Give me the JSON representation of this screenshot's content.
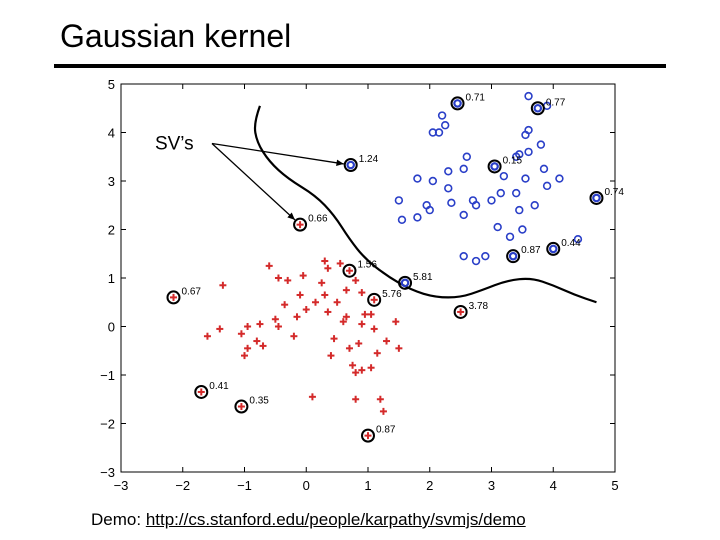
{
  "slide": {
    "title": "Gaussian kernel",
    "demo_prefix": "Demo:",
    "demo_link": "http://cs.stanford.edu/people/karpathy/svmjs/demo"
  },
  "colors": {
    "negative": "#d42a2a",
    "positive": "#2a3fc8",
    "boundary": "#000000",
    "ring": "#000000"
  },
  "chart_data": {
    "type": "scatter",
    "title": "",
    "xlabel": "",
    "ylabel": "",
    "xlim": [
      -3,
      5
    ],
    "ylim": [
      -3,
      5
    ],
    "xticks": [
      -3,
      -2,
      -1,
      0,
      1,
      2,
      3,
      4,
      5
    ],
    "yticks": [
      -3,
      -2,
      -1,
      0,
      1,
      2,
      3,
      4,
      5
    ],
    "xtick_labels": [
      "−3",
      "−2",
      "−1",
      "0",
      "1",
      "2",
      "3",
      "4",
      "5"
    ],
    "ytick_labels": [
      "−3",
      "−2",
      "−1",
      "0",
      "1",
      "2",
      "3",
      "4",
      "5"
    ],
    "grid": false,
    "annotation": {
      "text": "SV’s",
      "x": -2.45,
      "y": 3.65,
      "arrows_to": [
        [
          0.72,
          3.33
        ],
        [
          -0.1,
          2.1
        ]
      ]
    },
    "series": [
      {
        "marker": "plus",
        "color": "#d42a2a",
        "points": [
          [
            0.3,
            1.35
          ],
          [
            0.35,
            1.2
          ],
          [
            0.55,
            1.3
          ],
          [
            -0.6,
            1.25
          ],
          [
            -0.45,
            1.0
          ],
          [
            -0.3,
            0.95
          ],
          [
            -0.05,
            1.05
          ],
          [
            0.25,
            0.9
          ],
          [
            0.65,
            0.75
          ],
          [
            0.8,
            0.95
          ],
          [
            0.9,
            0.7
          ],
          [
            0.5,
            0.5
          ],
          [
            0.3,
            0.65
          ],
          [
            0.15,
            0.5
          ],
          [
            0.0,
            0.35
          ],
          [
            -0.15,
            0.2
          ],
          [
            -0.5,
            0.15
          ],
          [
            -0.35,
            0.45
          ],
          [
            -0.1,
            0.65
          ],
          [
            -0.45,
            0.0
          ],
          [
            -0.2,
            -0.2
          ],
          [
            -0.8,
            -0.3
          ],
          [
            -0.75,
            0.05
          ],
          [
            -0.95,
            0.0
          ],
          [
            -1.05,
            -0.15
          ],
          [
            -0.7,
            -0.4
          ],
          [
            -0.95,
            -0.45
          ],
          [
            -1.0,
            -0.6
          ],
          [
            -1.4,
            -0.05
          ],
          [
            -1.6,
            -0.2
          ],
          [
            -1.35,
            0.85
          ],
          [
            0.45,
            -0.25
          ],
          [
            0.65,
            0.2
          ],
          [
            0.95,
            0.25
          ],
          [
            0.9,
            0.05
          ],
          [
            1.05,
            0.25
          ],
          [
            1.1,
            -0.05
          ],
          [
            0.85,
            -0.35
          ],
          [
            1.3,
            -0.3
          ],
          [
            0.7,
            -0.45
          ],
          [
            1.15,
            -0.55
          ],
          [
            0.75,
            -0.8
          ],
          [
            0.9,
            -0.9
          ],
          [
            0.8,
            -0.95
          ],
          [
            1.05,
            -0.85
          ],
          [
            1.45,
            0.1
          ],
          [
            1.5,
            -0.45
          ],
          [
            0.4,
            -0.6
          ],
          [
            0.1,
            -1.45
          ],
          [
            0.8,
            -1.5
          ],
          [
            1.2,
            -1.5
          ],
          [
            1.25,
            -1.75
          ],
          [
            0.6,
            0.1
          ],
          [
            0.35,
            0.3
          ]
        ]
      },
      {
        "marker": "circle",
        "color": "#2a3fc8",
        "points": [
          [
            2.2,
            4.35
          ],
          [
            2.25,
            4.15
          ],
          [
            2.15,
            4.0
          ],
          [
            2.05,
            4.0
          ],
          [
            3.6,
            4.75
          ],
          [
            3.45,
            3.55
          ],
          [
            3.8,
            3.75
          ],
          [
            3.55,
            3.95
          ],
          [
            3.2,
            3.1
          ],
          [
            3.4,
            3.5
          ],
          [
            2.6,
            3.5
          ],
          [
            2.55,
            3.25
          ],
          [
            2.3,
            3.2
          ],
          [
            2.05,
            3.0
          ],
          [
            1.8,
            3.05
          ],
          [
            1.5,
            2.6
          ],
          [
            1.55,
            2.2
          ],
          [
            1.8,
            2.25
          ],
          [
            1.95,
            2.5
          ],
          [
            2.0,
            2.4
          ],
          [
            2.3,
            2.85
          ],
          [
            2.35,
            2.55
          ],
          [
            2.55,
            2.3
          ],
          [
            2.75,
            2.5
          ],
          [
            2.7,
            2.6
          ],
          [
            3.0,
            2.6
          ],
          [
            3.15,
            2.75
          ],
          [
            3.4,
            2.75
          ],
          [
            3.45,
            2.4
          ],
          [
            3.7,
            2.5
          ],
          [
            3.9,
            2.9
          ],
          [
            4.1,
            3.05
          ],
          [
            3.85,
            3.25
          ],
          [
            3.55,
            3.05
          ],
          [
            3.1,
            2.05
          ],
          [
            3.3,
            1.85
          ],
          [
            3.5,
            2.0
          ],
          [
            4.4,
            1.8
          ],
          [
            2.9,
            1.45
          ],
          [
            2.75,
            1.35
          ],
          [
            2.55,
            1.45
          ],
          [
            3.6,
            3.6
          ],
          [
            3.9,
            4.55
          ],
          [
            3.6,
            4.05
          ]
        ]
      }
    ],
    "support_vectors": [
      {
        "x": 2.45,
        "y": 4.6,
        "label": "0.71",
        "class": "positive"
      },
      {
        "x": 3.75,
        "y": 4.5,
        "label": "0.77",
        "class": "positive"
      },
      {
        "x": 0.72,
        "y": 3.33,
        "label": "1.24",
        "class": "positive"
      },
      {
        "x": 3.05,
        "y": 3.3,
        "label": "0.15",
        "class": "positive"
      },
      {
        "x": 4.7,
        "y": 2.65,
        "label": "0.74",
        "class": "positive"
      },
      {
        "x": 4.0,
        "y": 1.6,
        "label": "0.44",
        "class": "positive"
      },
      {
        "x": 3.35,
        "y": 1.45,
        "label": "0.87",
        "class": "positive"
      },
      {
        "x": 1.6,
        "y": 0.9,
        "label": "5.81",
        "class": "positive"
      },
      {
        "x": -0.1,
        "y": 2.1,
        "label": "0.66",
        "class": "negative"
      },
      {
        "x": 0.7,
        "y": 1.15,
        "label": "1.56",
        "class": "negative"
      },
      {
        "x": 1.1,
        "y": 0.55,
        "label": "5.76",
        "class": "negative"
      },
      {
        "x": 2.5,
        "y": 0.3,
        "label": "3.78",
        "class": "negative"
      },
      {
        "x": -2.15,
        "y": 0.6,
        "label": "0.67",
        "class": "negative"
      },
      {
        "x": -1.7,
        "y": -1.35,
        "label": "0.41",
        "class": "negative"
      },
      {
        "x": -1.05,
        "y": -1.65,
        "label": "0.35",
        "class": "negative"
      },
      {
        "x": 1.0,
        "y": -2.25,
        "label": "0.87",
        "class": "negative"
      }
    ],
    "decision_boundary": [
      [
        -0.75,
        4.55
      ],
      [
        -0.85,
        4.2
      ],
      [
        -0.8,
        3.8
      ],
      [
        -0.6,
        3.4
      ],
      [
        -0.3,
        3.05
      ],
      [
        0.15,
        2.7
      ],
      [
        0.45,
        2.3
      ],
      [
        0.7,
        1.8
      ],
      [
        0.95,
        1.4
      ],
      [
        1.3,
        1.05
      ],
      [
        1.7,
        0.75
      ],
      [
        2.1,
        0.6
      ],
      [
        2.5,
        0.6
      ],
      [
        2.85,
        0.75
      ],
      [
        3.25,
        0.95
      ],
      [
        3.65,
        1.0
      ],
      [
        4.0,
        0.85
      ],
      [
        4.35,
        0.65
      ],
      [
        4.7,
        0.5
      ]
    ]
  }
}
